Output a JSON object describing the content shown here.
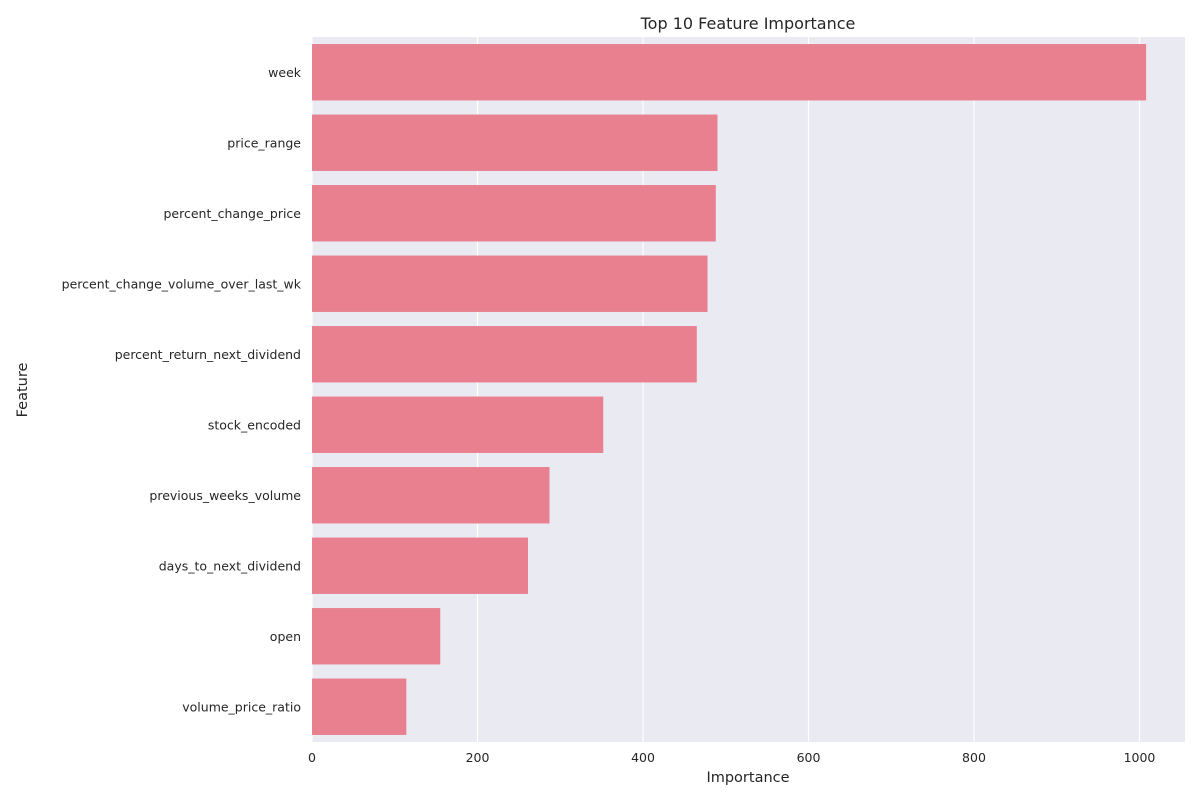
{
  "chart_data": {
    "type": "bar",
    "orientation": "horizontal",
    "title": "Top 10 Feature Importance",
    "xlabel": "Importance",
    "ylabel": "Feature",
    "xlim": [
      0,
      1055
    ],
    "xticks": [
      0,
      200,
      400,
      600,
      800,
      1000
    ],
    "grid": true,
    "bar_color": "#e8808f",
    "background_color": "#eaeaf2",
    "categories": [
      "week",
      "price_range",
      "percent_change_price",
      "percent_change_volume_over_last_wk",
      "percent_return_next_dividend",
      "stock_encoded",
      "previous_weeks_volume",
      "days_to_next_dividend",
      "open",
      "volume_price_ratio"
    ],
    "values": [
      1008,
      490,
      488,
      478,
      465,
      352,
      287,
      261,
      155,
      114
    ]
  }
}
